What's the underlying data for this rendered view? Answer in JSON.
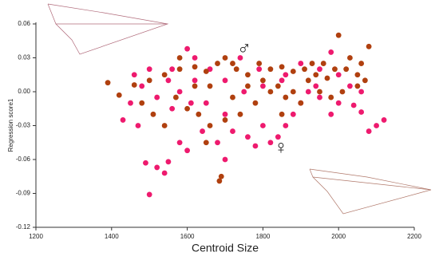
{
  "chart_data": {
    "type": "scatter",
    "x_label": "Centroid Size",
    "y_label": "Regression score1",
    "annotations": [
      "♂",
      "♀"
    ],
    "xlim": [
      1200,
      2200
    ],
    "xticks": [
      1200,
      1400,
      1600,
      1800,
      2000,
      2200
    ],
    "ylim": [
      -0.12,
      0.06
    ],
    "yticks": [
      0.06,
      0.03,
      {
        "value": 0,
        "label": "0.00"
      },
      -0.03,
      -0.06,
      -0.09,
      -0.12
    ],
    "series": [
      {
        "color": "#ee1a6e",
        "x": [
          1500,
          1540,
          1520,
          1550,
          1490,
          1580,
          1600,
          1470,
          1430,
          1450,
          1480,
          1500,
          1550,
          1600,
          1620,
          1650,
          1700,
          1720,
          1760,
          1780,
          1800,
          1820,
          1840,
          1860,
          1880,
          1900,
          1920,
          1950,
          1980,
          2000,
          2040,
          2060,
          2100,
          2080,
          2120,
          2000,
          1950,
          1900,
          1850,
          1800,
          1750,
          1700,
          1660,
          1620,
          1580,
          1560,
          1520,
          1460,
          1680,
          1640,
          1740,
          1790,
          1860,
          1940,
          2030,
          2060,
          1980,
          1700,
          1560,
          1610
        ],
        "values": [
          -0.091,
          -0.072,
          -0.067,
          -0.062,
          -0.063,
          -0.045,
          -0.052,
          -0.03,
          -0.025,
          -0.01,
          0.005,
          0.02,
          0.01,
          0.038,
          0.01,
          -0.01,
          -0.02,
          -0.035,
          -0.04,
          -0.048,
          -0.03,
          -0.045,
          -0.04,
          -0.03,
          -0.02,
          -0.01,
          0,
          -0.005,
          -0.02,
          -0.01,
          -0.012,
          -0.018,
          -0.03,
          -0.035,
          -0.025,
          0.015,
          0.02,
          0.025,
          0.01,
          0.005,
          0,
          0.01,
          0.02,
          0.03,
          0,
          -0.015,
          -0.005,
          0.015,
          -0.045,
          -0.035,
          0.03,
          0.02,
          0.015,
          0.005,
          0.005,
          0,
          0.035,
          -0.06,
          0.02,
          -0.01
        ]
      },
      {
        "color": "#b0400f",
        "x": [
          1390,
          1420,
          1460,
          1500,
          1540,
          1580,
          1620,
          1650,
          1680,
          1700,
          1730,
          1760,
          1790,
          1820,
          1850,
          1880,
          1910,
          1940,
          1970,
          2000,
          2020,
          2050,
          2080,
          2070,
          2050,
          2010,
          1980,
          1950,
          1900,
          1860,
          1820,
          1780,
          1740,
          1700,
          1660,
          1630,
          1600,
          1570,
          1540,
          1510,
          1480,
          1690,
          1685,
          1650,
          1720,
          1760,
          1800,
          1840,
          1880,
          1930,
          1960,
          1990,
          2030,
          1620,
          1580,
          1660,
          1720,
          1850,
          1920,
          2060
        ],
        "values": [
          0.008,
          -0.003,
          0.006,
          0.01,
          0.015,
          0.02,
          0.022,
          0.018,
          0.025,
          0.03,
          0.02,
          0.015,
          0.025,
          0.02,
          0.022,
          0.018,
          0.02,
          0.015,
          0.012,
          0.05,
          0.02,
          0.015,
          0.04,
          0.01,
          0.005,
          0,
          -0.005,
          0,
          -0.01,
          -0.005,
          0,
          -0.01,
          -0.02,
          -0.025,
          -0.03,
          -0.02,
          -0.015,
          -0.005,
          -0.03,
          -0.02,
          -0.01,
          -0.075,
          -0.079,
          -0.045,
          -0.005,
          0.005,
          0.01,
          0.005,
          0,
          0.025,
          0.025,
          0.02,
          0.03,
          0.005,
          0.03,
          0.005,
          0.025,
          -0.02,
          0.01,
          0.025
        ]
      }
    ]
  }
}
